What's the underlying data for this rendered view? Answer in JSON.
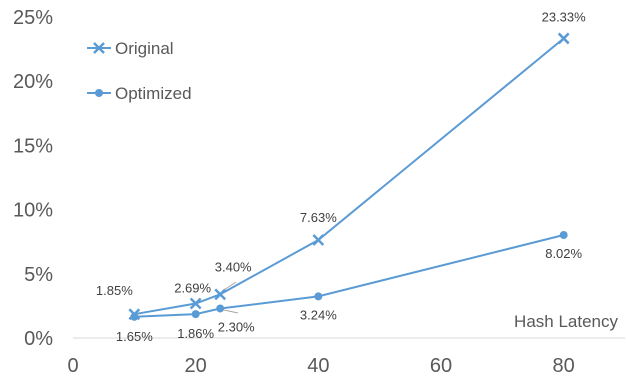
{
  "chart_data": {
    "type": "line",
    "title": "",
    "xlabel": "Hash Latency",
    "ylabel": "",
    "xlim": [
      0,
      90
    ],
    "ylim": [
      0,
      25
    ],
    "x_ticks": [
      "0",
      "20",
      "40",
      "60",
      "80"
    ],
    "y_ticks": [
      "0%",
      "5%",
      "10%",
      "15%",
      "20%",
      "25%"
    ],
    "grid": false,
    "legend_position": "top-left",
    "series": [
      {
        "name": "Original",
        "color": "#5b9bd5",
        "marker": "x",
        "points": [
          {
            "x": 10,
            "y": 1.85,
            "label": "1.85%"
          },
          {
            "x": 20,
            "y": 2.69,
            "label": "2.69%"
          },
          {
            "x": 24,
            "y": 3.4,
            "label": "3.40%"
          },
          {
            "x": 40,
            "y": 7.63,
            "label": "7.63%"
          },
          {
            "x": 80,
            "y": 23.33,
            "label": "23.33%"
          }
        ]
      },
      {
        "name": "Optimized",
        "color": "#5b9bd5",
        "marker": "circle",
        "points": [
          {
            "x": 10,
            "y": 1.65,
            "label": "1.65%"
          },
          {
            "x": 20,
            "y": 1.86,
            "label": "1.86%"
          },
          {
            "x": 24,
            "y": 2.3,
            "label": "2.30%"
          },
          {
            "x": 40,
            "y": 3.24,
            "label": "3.24%"
          },
          {
            "x": 80,
            "y": 8.02,
            "label": "8.02%"
          }
        ]
      }
    ]
  }
}
